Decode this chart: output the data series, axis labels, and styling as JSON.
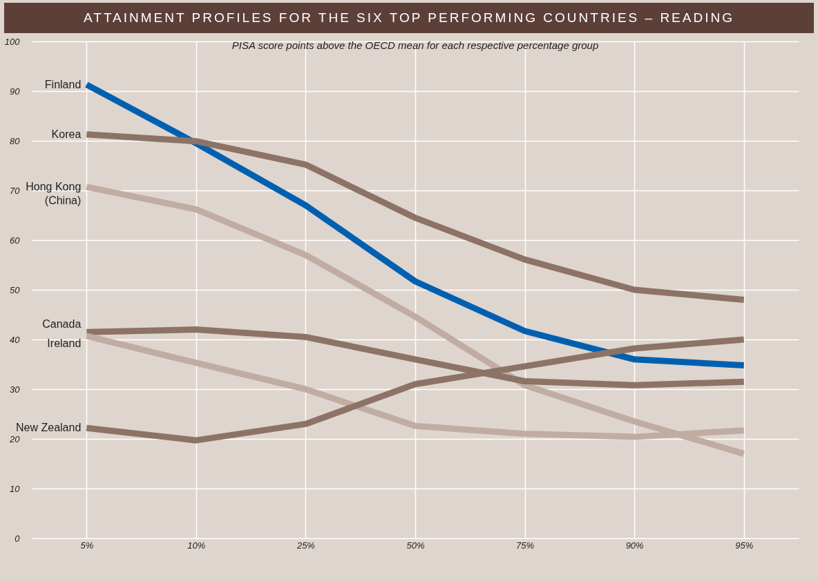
{
  "chart_data": {
    "type": "line",
    "title": "ATTAINMENT PROFILES FOR THE SIX TOP PERFORMING COUNTRIES – READING",
    "subtitle": "PISA score points above the OECD mean for each respective percentage group",
    "categories": [
      "5%",
      "10%",
      "25%",
      "50%",
      "75%",
      "90%",
      "95%"
    ],
    "ylim": [
      0,
      100
    ],
    "yticks": [
      0,
      10,
      20,
      30,
      40,
      50,
      60,
      70,
      80,
      90,
      100
    ],
    "grid": true,
    "line_style": "solid",
    "series": [
      {
        "name": "Finland",
        "color": "#0060b0",
        "values": [
          91.3,
          79.5,
          67,
          51.7,
          41.7,
          36,
          34.8
        ]
      },
      {
        "name": "Korea",
        "color": "#8c7366",
        "values": [
          81.3,
          79.9,
          75.2,
          64.5,
          56.1,
          50,
          48
        ]
      },
      {
        "name": "Hong Kong\n(China)",
        "color": "#c0aca2",
        "values": [
          70.7,
          66.2,
          57,
          44.6,
          30.8,
          23.5,
          17
        ]
      },
      {
        "name": "Canada",
        "color": "#8c7366",
        "values": [
          41.5,
          42,
          40.5,
          36,
          31.6,
          30.8,
          31.5
        ]
      },
      {
        "name": "Ireland",
        "color": "#c0aca2",
        "values": [
          40.7,
          35.3,
          30,
          22.6,
          21,
          20.4,
          21.7
        ]
      },
      {
        "name": "New Zealand",
        "color": "#8c7366",
        "values": [
          22.2,
          19.7,
          23,
          31,
          34.6,
          38.2,
          40
        ]
      }
    ]
  }
}
